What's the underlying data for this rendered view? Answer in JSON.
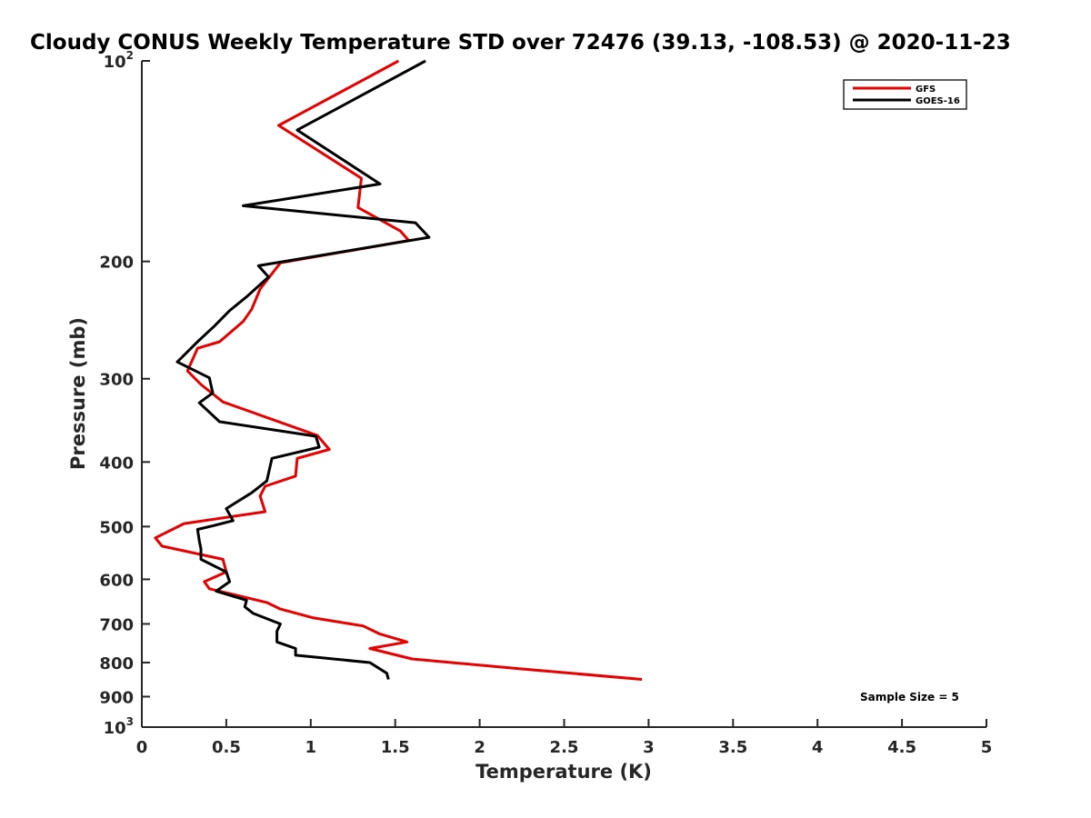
{
  "chart_data": {
    "type": "line",
    "title": "Cloudy CONUS Weekly Temperature STD over 72476 (39.13, -108.53) @ 2020-11-23",
    "xlabel": "Temperature (K)",
    "ylabel": "Pressure (mb)",
    "xlim": [
      0,
      5
    ],
    "ylim": [
      100,
      1000
    ],
    "yscale": "log",
    "y_reversed": true,
    "grid": false,
    "legend_position": "top-right",
    "x_ticks": [
      {
        "value": 0,
        "label": "0"
      },
      {
        "value": 0.5,
        "label": "0.5"
      },
      {
        "value": 1,
        "label": "1"
      },
      {
        "value": 1.5,
        "label": "1.5"
      },
      {
        "value": 2,
        "label": "2"
      },
      {
        "value": 2.5,
        "label": "2.5"
      },
      {
        "value": 3,
        "label": "3"
      },
      {
        "value": 3.5,
        "label": "3.5"
      },
      {
        "value": 4,
        "label": "4"
      },
      {
        "value": 4.5,
        "label": "4.5"
      },
      {
        "value": 5,
        "label": "5"
      }
    ],
    "y_ticks": [
      {
        "value": 100,
        "label": "10",
        "exp": "2"
      },
      {
        "value": 200,
        "label": "200"
      },
      {
        "value": 300,
        "label": "300"
      },
      {
        "value": 400,
        "label": "400"
      },
      {
        "value": 500,
        "label": "500"
      },
      {
        "value": 600,
        "label": "600"
      },
      {
        "value": 700,
        "label": "700"
      },
      {
        "value": 800,
        "label": "800"
      },
      {
        "value": 900,
        "label": "900"
      },
      {
        "value": 1000,
        "label": "10",
        "exp": "3"
      }
    ],
    "annotation": "Sample Size = 5",
    "series": [
      {
        "name": "GFS",
        "color": "#e60000",
        "x": [
          1.52,
          0.81,
          1.3,
          1.28,
          1.53,
          1.58,
          0.82,
          0.7,
          0.65,
          0.6,
          0.46,
          0.33,
          0.27,
          0.35,
          0.48,
          1.04,
          1.11,
          0.92,
          0.91,
          0.73,
          0.7,
          0.73,
          0.25,
          0.08,
          0.12,
          0.48,
          0.5,
          0.37,
          0.4,
          0.74,
          0.82,
          1.01,
          1.31,
          1.41,
          1.57,
          1.35,
          1.6,
          2.25,
          2.96
        ],
        "y": [
          100,
          125,
          150,
          166,
          180,
          186,
          201,
          220,
          236,
          246,
          264,
          270,
          292,
          306,
          325,
          365,
          383,
          395,
          420,
          435,
          450,
          475,
          495,
          520,
          535,
          560,
          585,
          605,
          620,
          650,
          665,
          685,
          705,
          725,
          745,
          762,
          790,
          818,
          848
        ]
      },
      {
        "name": "GOES-16",
        "color": "#000000",
        "x": [
          1.68,
          0.92,
          1.41,
          0.6,
          1.62,
          1.7,
          0.69,
          0.75,
          0.62,
          0.52,
          0.43,
          0.33,
          0.21,
          0.4,
          0.42,
          0.34,
          0.46,
          1.03,
          1.05,
          0.77,
          0.74,
          0.65,
          0.5,
          0.54,
          0.43,
          0.33,
          0.34,
          0.35,
          0.35,
          0.5,
          0.52,
          0.44,
          0.62,
          0.61,
          0.66,
          0.82,
          0.8,
          0.8,
          0.91,
          0.91,
          1.35,
          1.45,
          1.46
        ],
        "y": [
          100,
          127,
          153,
          165,
          175,
          184,
          203,
          211,
          226,
          237,
          250,
          264,
          283,
          299,
          315,
          326,
          348,
          366,
          380,
          395,
          427,
          445,
          470,
          490,
          498,
          505,
          525,
          540,
          560,
          585,
          605,
          625,
          645,
          660,
          675,
          700,
          718,
          745,
          762,
          780,
          800,
          830,
          848
        ]
      }
    ]
  }
}
